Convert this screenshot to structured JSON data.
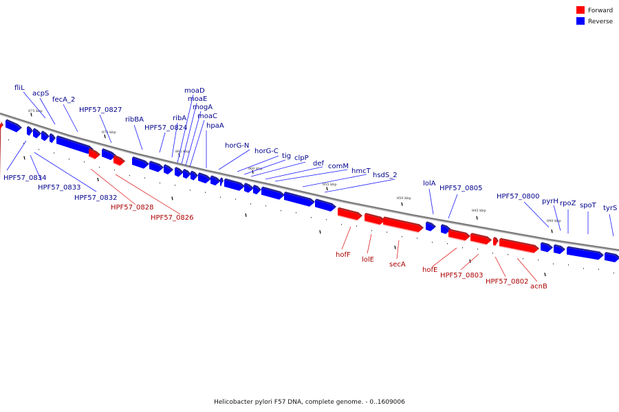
{
  "caption": "Helicobacter pylori F57 DNA, complete genome. - 0..1609006",
  "legend": {
    "forward": {
      "label": "Forward",
      "color": "#ff0000"
    },
    "reverse": {
      "label": "Reverse",
      "color": "#0000ff"
    }
  },
  "colors": {
    "forward_label": "#aa0000",
    "reverse_label": "#00008b",
    "backbone": "#777777"
  },
  "kbp_markers": [
    "875 kbp",
    "870 kbp",
    "865 kbp",
    "860 kbp",
    "855 kbp",
    "850 kbp",
    "845 kbp",
    "840 kbp"
  ],
  "genes": {
    "reverse": [
      "fliL",
      "acpS",
      "fecA_2",
      "HPF57_0827",
      "ribBA",
      "HPF57_0824",
      "ribA",
      "moaD",
      "moaE",
      "mogA",
      "moaC",
      "hpaA",
      "horG-N",
      "horG-C",
      "tig",
      "clpP",
      "def",
      "comM",
      "hmcT",
      "hsdS_2",
      "HPF57_0834",
      "HPF57_0833",
      "HPF57_0832",
      "lolA",
      "HPF57_0805",
      "HPF57_0800",
      "pyrH",
      "rpoZ",
      "spoT",
      "tyrS"
    ],
    "forward": [
      "HPF57_0828",
      "HPF57_0826",
      "hofF",
      "lolE",
      "secA",
      "hofE",
      "HPF57_0803",
      "HPF57_0802",
      "acnB"
    ]
  }
}
